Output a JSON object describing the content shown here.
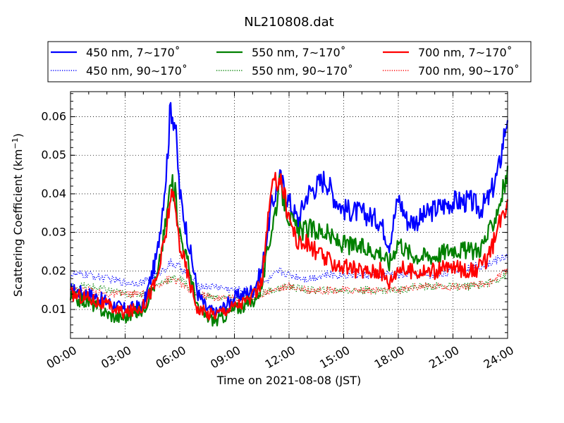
{
  "chart_data": {
    "type": "line",
    "title": "NL210808.dat",
    "xlabel": "Time on 2021-08-08 (JST)",
    "ylabel": "Scattering Coefficient (km",
    "ylabel_sup": "−1",
    "ylabel_end": ")",
    "xlim": [
      "00:00",
      "24:00"
    ],
    "ylim": [
      0.0025,
      0.0665
    ],
    "x_ticks": [
      "00:00",
      "03:00",
      "06:00",
      "09:00",
      "12:00",
      "15:00",
      "18:00",
      "21:00",
      "24:00"
    ],
    "y_ticks": [
      "0.01",
      "0.02",
      "0.03",
      "0.04",
      "0.05",
      "0.06"
    ],
    "grid": true,
    "legend_position": "top",
    "series": [
      {
        "name": "450 nm, 7∼170˚",
        "color": "#0000ff",
        "style": "solid",
        "x": [
          "00:00",
          "01:00",
          "02:00",
          "02:30",
          "03:00",
          "04:00",
          "04:45",
          "05:15",
          "05:30",
          "05:45",
          "06:00",
          "06:30",
          "07:00",
          "07:30",
          "08:00",
          "09:00",
          "10:00",
          "10:30",
          "11:00",
          "11:30",
          "12:00",
          "12:30",
          "13:00",
          "14:00",
          "14:30",
          "15:00",
          "16:00",
          "17:00",
          "17:30",
          "18:00",
          "18:30",
          "19:00",
          "20:00",
          "21:00",
          "22:00",
          "22:30",
          "23:00",
          "23:30",
          "24:00"
        ],
        "y": [
          0.015,
          0.014,
          0.012,
          0.011,
          0.01,
          0.011,
          0.024,
          0.045,
          0.063,
          0.058,
          0.04,
          0.027,
          0.014,
          0.01,
          0.009,
          0.013,
          0.015,
          0.02,
          0.036,
          0.044,
          0.038,
          0.033,
          0.04,
          0.044,
          0.039,
          0.036,
          0.035,
          0.033,
          0.027,
          0.039,
          0.033,
          0.033,
          0.036,
          0.038,
          0.038,
          0.036,
          0.039,
          0.046,
          0.061
        ]
      },
      {
        "name": "450 nm, 90∼170˚",
        "color": "#0000ff",
        "style": "dotted",
        "x": [
          "00:00",
          "01:00",
          "02:00",
          "03:00",
          "04:00",
          "05:00",
          "05:30",
          "06:00",
          "06:30",
          "07:00",
          "08:00",
          "09:00",
          "10:00",
          "11:00",
          "11:30",
          "12:00",
          "13:00",
          "14:00",
          "15:00",
          "16:00",
          "17:00",
          "18:00",
          "19:00",
          "20:00",
          "21:00",
          "22:00",
          "23:00",
          "24:00"
        ],
        "y": [
          0.019,
          0.019,
          0.018,
          0.017,
          0.017,
          0.02,
          0.022,
          0.021,
          0.019,
          0.016,
          0.016,
          0.015,
          0.015,
          0.018,
          0.02,
          0.019,
          0.018,
          0.019,
          0.019,
          0.019,
          0.019,
          0.019,
          0.019,
          0.019,
          0.02,
          0.021,
          0.022,
          0.024
        ]
      },
      {
        "name": "550 nm, 7∼170˚",
        "color": "#008000",
        "style": "solid",
        "x": [
          "00:00",
          "01:00",
          "02:00",
          "02:30",
          "03:00",
          "04:00",
          "04:45",
          "05:15",
          "05:30",
          "05:45",
          "06:00",
          "06:30",
          "07:00",
          "07:30",
          "08:00",
          "09:00",
          "10:00",
          "10:30",
          "11:00",
          "11:30",
          "12:00",
          "12:30",
          "13:00",
          "14:00",
          "14:30",
          "15:00",
          "16:00",
          "17:00",
          "17:30",
          "18:00",
          "18:30",
          "19:00",
          "20:00",
          "21:00",
          "22:00",
          "22:30",
          "23:00",
          "23:30",
          "24:00"
        ],
        "y": [
          0.013,
          0.012,
          0.009,
          0.008,
          0.008,
          0.01,
          0.018,
          0.033,
          0.043,
          0.04,
          0.03,
          0.021,
          0.01,
          0.008,
          0.007,
          0.01,
          0.012,
          0.016,
          0.03,
          0.042,
          0.034,
          0.03,
          0.031,
          0.03,
          0.028,
          0.027,
          0.026,
          0.025,
          0.022,
          0.028,
          0.025,
          0.024,
          0.024,
          0.026,
          0.025,
          0.026,
          0.03,
          0.037,
          0.045
        ]
      },
      {
        "name": "550 nm, 90∼170˚",
        "color": "#008000",
        "style": "dotted",
        "x": [
          "00:00",
          "01:00",
          "02:00",
          "03:00",
          "04:00",
          "05:00",
          "05:30",
          "06:00",
          "06:30",
          "07:00",
          "08:00",
          "09:00",
          "10:00",
          "11:00",
          "12:00",
          "13:00",
          "14:00",
          "15:00",
          "16:00",
          "17:00",
          "18:00",
          "19:00",
          "20:00",
          "21:00",
          "22:00",
          "23:00",
          "24:00"
        ],
        "y": [
          0.016,
          0.016,
          0.015,
          0.014,
          0.014,
          0.017,
          0.018,
          0.018,
          0.016,
          0.014,
          0.013,
          0.013,
          0.013,
          0.015,
          0.016,
          0.015,
          0.015,
          0.015,
          0.015,
          0.015,
          0.015,
          0.016,
          0.016,
          0.016,
          0.016,
          0.017,
          0.019
        ]
      },
      {
        "name": "700 nm, 7∼170˚",
        "color": "#ff0000",
        "style": "solid",
        "x": [
          "00:00",
          "01:00",
          "02:00",
          "02:30",
          "03:00",
          "04:00",
          "04:45",
          "05:15",
          "05:30",
          "05:45",
          "06:00",
          "06:30",
          "07:00",
          "07:30",
          "08:00",
          "09:00",
          "10:00",
          "10:30",
          "11:00",
          "11:30",
          "12:00",
          "12:30",
          "13:00",
          "14:00",
          "14:30",
          "15:00",
          "16:00",
          "17:00",
          "17:30",
          "18:00",
          "18:30",
          "19:00",
          "20:00",
          "21:00",
          "22:00",
          "22:30",
          "23:00",
          "23:30",
          "24:00"
        ],
        "y": [
          0.014,
          0.013,
          0.011,
          0.01,
          0.009,
          0.011,
          0.018,
          0.03,
          0.04,
          0.036,
          0.027,
          0.018,
          0.01,
          0.009,
          0.009,
          0.011,
          0.013,
          0.017,
          0.04,
          0.045,
          0.034,
          0.027,
          0.027,
          0.023,
          0.022,
          0.021,
          0.02,
          0.02,
          0.017,
          0.021,
          0.02,
          0.02,
          0.02,
          0.021,
          0.02,
          0.021,
          0.024,
          0.031,
          0.039
        ]
      },
      {
        "name": "700 nm, 90∼170˚",
        "color": "#ff0000",
        "style": "dotted",
        "x": [
          "00:00",
          "01:00",
          "02:00",
          "03:00",
          "04:00",
          "05:00",
          "05:30",
          "06:00",
          "06:30",
          "07:00",
          "08:00",
          "09:00",
          "10:00",
          "11:00",
          "12:00",
          "13:00",
          "14:00",
          "15:00",
          "16:00",
          "17:00",
          "18:00",
          "19:00",
          "20:00",
          "21:00",
          "22:00",
          "23:00",
          "24:00"
        ],
        "y": [
          0.015,
          0.015,
          0.014,
          0.014,
          0.014,
          0.017,
          0.018,
          0.017,
          0.015,
          0.014,
          0.013,
          0.013,
          0.013,
          0.015,
          0.016,
          0.015,
          0.015,
          0.015,
          0.015,
          0.015,
          0.015,
          0.016,
          0.016,
          0.016,
          0.016,
          0.017,
          0.02
        ]
      }
    ]
  }
}
